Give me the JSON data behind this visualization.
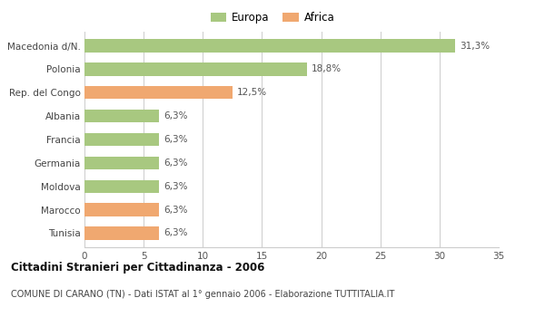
{
  "categories": [
    "Macedonia d/N.",
    "Polonia",
    "Rep. del Congo",
    "Albania",
    "Francia",
    "Germania",
    "Moldova",
    "Marocco",
    "Tunisia"
  ],
  "values": [
    31.3,
    18.8,
    12.5,
    6.3,
    6.3,
    6.3,
    6.3,
    6.3,
    6.3
  ],
  "labels": [
    "31,3%",
    "18,8%",
    "12,5%",
    "6,3%",
    "6,3%",
    "6,3%",
    "6,3%",
    "6,3%",
    "6,3%"
  ],
  "colors": [
    "#a8c880",
    "#a8c880",
    "#f0a870",
    "#a8c880",
    "#a8c880",
    "#a8c880",
    "#a8c880",
    "#f0a870",
    "#f0a870"
  ],
  "europa_color": "#a8c880",
  "africa_color": "#f0a870",
  "xlim": [
    0,
    35
  ],
  "xticks": [
    0,
    5,
    10,
    15,
    20,
    25,
    30,
    35
  ],
  "title": "Cittadini Stranieri per Cittadinanza - 2006",
  "subtitle": "COMUNE DI CARANO (TN) - Dati ISTAT al 1° gennaio 2006 - Elaborazione TUTTITALIA.IT",
  "background_color": "#ffffff",
  "grid_color": "#cccccc",
  "bar_height": 0.55
}
